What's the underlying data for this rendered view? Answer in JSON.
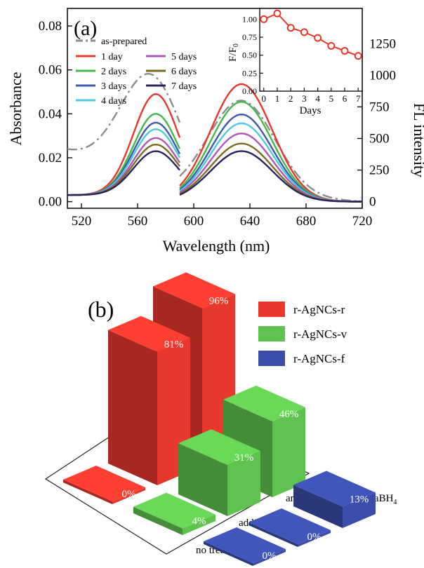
{
  "chart_data": [
    {
      "panel": "(a)",
      "type": "line",
      "xlabel": "Wavelength (nm)",
      "ylabel": "Absorbance",
      "y2label": "FL intensity",
      "xlim": [
        510,
        720
      ],
      "ylim": [
        -0.003,
        0.088
      ],
      "y2lim": [
        -52.25,
        1529.0
      ],
      "xticks": [
        520,
        560,
        600,
        640,
        680,
        720
      ],
      "yticks": [
        0.0,
        0.02,
        0.04,
        0.06,
        0.08
      ],
      "ytick_labels": [
        "0.00",
        "0.02",
        "0.04",
        "0.06",
        "0.08"
      ],
      "y2ticks": [
        0,
        250,
        500,
        750,
        1000,
        1250
      ],
      "legend": "top-left",
      "absorbance_range": [
        510,
        590
      ],
      "fl_range": [
        590,
        720
      ],
      "series": [
        {
          "name": "as-prepared",
          "color": "#8c8c8c",
          "dash": "dashdot",
          "abs_peak": 0.05,
          "abs_center": 570,
          "abs_width": 22,
          "abs_base": 0.003,
          "abs_tail": 0.022,
          "fl_peak": 760,
          "fl_center": 634,
          "fl_width": 24,
          "fl_base": 60
        },
        {
          "name": "1 day",
          "color": "#e8382d",
          "abs_peak": 0.046,
          "abs_center": 573,
          "abs_width": 16,
          "abs_base": 0.003,
          "fl_peak": 930,
          "fl_center": 634,
          "fl_width": 22,
          "fl_base": 0
        },
        {
          "name": "2 days",
          "color": "#45b84a",
          "abs_peak": 0.037,
          "abs_center": 573,
          "abs_width": 16,
          "abs_base": 0.003,
          "fl_peak": 790,
          "fl_center": 634,
          "fl_width": 22,
          "fl_base": 0
        },
        {
          "name": "3 days",
          "color": "#3d5aa8",
          "abs_peak": 0.033,
          "abs_center": 573,
          "abs_width": 16,
          "abs_base": 0.003,
          "fl_peak": 690,
          "fl_center": 634,
          "fl_width": 22,
          "fl_base": 0
        },
        {
          "name": "4 days",
          "color": "#4fc8e0",
          "abs_peak": 0.03,
          "abs_center": 573,
          "abs_width": 16,
          "abs_base": 0.003,
          "fl_peak": 620,
          "fl_center": 634,
          "fl_width": 22,
          "fl_base": 0
        },
        {
          "name": "5 days",
          "color": "#b058b8",
          "abs_peak": 0.026,
          "abs_center": 573,
          "abs_width": 16,
          "abs_base": 0.003,
          "fl_peak": 540,
          "fl_center": 634,
          "fl_width": 22,
          "fl_base": 0
        },
        {
          "name": "6 days",
          "color": "#7a6a22",
          "abs_peak": 0.023,
          "abs_center": 573,
          "abs_width": 16,
          "abs_base": 0.003,
          "fl_peak": 460,
          "fl_center": 634,
          "fl_width": 22,
          "fl_base": 0
        },
        {
          "name": "7 days",
          "color": "#28245e",
          "abs_peak": 0.02,
          "abs_center": 573,
          "abs_width": 16,
          "abs_base": 0.003,
          "fl_peak": 400,
          "fl_center": 634,
          "fl_width": 22,
          "fl_base": 0
        }
      ],
      "inset": {
        "type": "line",
        "xlabel": "Days",
        "ylabel": "F/F0",
        "x": [
          0,
          1,
          2,
          3,
          4,
          5,
          6,
          7
        ],
        "y": [
          1.0,
          1.08,
          0.88,
          0.82,
          0.74,
          0.63,
          0.56,
          0.49
        ],
        "xlim": [
          -0.3,
          7.3
        ],
        "ylim": [
          0,
          1.15
        ],
        "yticks": [
          0.0,
          0.25,
          0.5,
          0.75,
          1.0
        ],
        "ytick_labels": [
          "0.00",
          "0.25",
          "0.50",
          "0.75",
          "1.00"
        ],
        "color": "#e8382d"
      }
    },
    {
      "panel": "(b)",
      "type": "bar",
      "style": "3d",
      "categories": [
        "no treatment",
        "adding NaBH4",
        "annealing +adding NaBH4"
      ],
      "series": [
        {
          "name": "r-AgNCs-r",
          "color": "#e8382d",
          "values": [
            0,
            81,
            96
          ],
          "labels": [
            "0%",
            "81%",
            "96%"
          ]
        },
        {
          "name": "r-AgNCs-v",
          "color": "#5ec24e",
          "values": [
            4,
            31,
            46
          ],
          "labels": [
            "4%",
            "31%",
            "46%"
          ]
        },
        {
          "name": "r-AgNCs-f",
          "color": "#3a4da8",
          "values": [
            0,
            0,
            13
          ],
          "labels": [
            "0%",
            "0%",
            "13%"
          ]
        }
      ]
    }
  ]
}
